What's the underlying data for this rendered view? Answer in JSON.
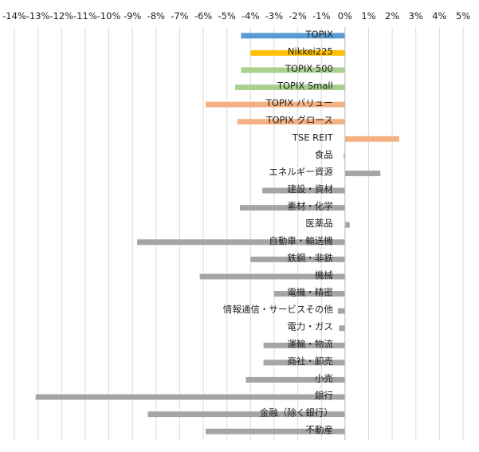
{
  "chart_data": {
    "type": "bar",
    "orientation": "horizontal",
    "xlim": [
      -0.14,
      0.05
    ],
    "x_ticks": [
      -0.14,
      -0.13,
      -0.12,
      -0.11,
      -0.1,
      -0.09,
      -0.08,
      -0.07,
      -0.06,
      -0.05,
      -0.04,
      -0.03,
      -0.02,
      -0.01,
      0,
      0.01,
      0.02,
      0.03,
      0.04,
      0.05
    ],
    "x_tick_labels": [
      "-14%",
      "-13%",
      "-12%",
      "-11%",
      "-10%",
      "-9%",
      "-8%",
      "-7%",
      "-6%",
      "-5%",
      "-4%",
      "-3%",
      "-2%",
      "-1%",
      "0%",
      "1%",
      "2%",
      "3%",
      "4%",
      "5%"
    ],
    "grid": true,
    "categories": [
      "TOPIX",
      "Nikkei225",
      "TOPIX 500",
      "TOPIX Small",
      "TOPIX バリュー",
      "TOPIX グロース",
      "TSE REIT",
      "食品",
      "エネルギー資源",
      "建設・資材",
      "素材・化学",
      "医薬品",
      "自動車・輸送機",
      "鉄鋼・非鉄",
      "機械",
      "電機・精密",
      "情報通信・サービスその他",
      "電力・ガス",
      "運輸・物流",
      "商社・卸売",
      "小売",
      "銀行",
      "金融（除く銀行）",
      "不動産"
    ],
    "values": [
      -0.044,
      -0.04,
      -0.044,
      -0.0465,
      -0.059,
      -0.0455,
      0.023,
      -0.0005,
      0.015,
      -0.035,
      -0.0445,
      0.002,
      -0.088,
      -0.04,
      -0.0615,
      -0.03,
      -0.003,
      -0.0025,
      -0.0345,
      -0.0345,
      -0.042,
      -0.131,
      -0.0835,
      -0.059
    ],
    "colors": [
      "#5b9bd5",
      "#ffc000",
      "#a9d18e",
      "#a9d18e",
      "#f4b183",
      "#f4b183",
      "#f4b183",
      "#a5a5a5",
      "#a5a5a5",
      "#a5a5a5",
      "#a5a5a5",
      "#a5a5a5",
      "#a5a5a5",
      "#a5a5a5",
      "#a5a5a5",
      "#a5a5a5",
      "#a5a5a5",
      "#a5a5a5",
      "#a5a5a5",
      "#a5a5a5",
      "#a5a5a5",
      "#a5a5a5",
      "#a5a5a5",
      "#a5a5a5"
    ],
    "title": "",
    "xlabel": "",
    "ylabel": ""
  }
}
